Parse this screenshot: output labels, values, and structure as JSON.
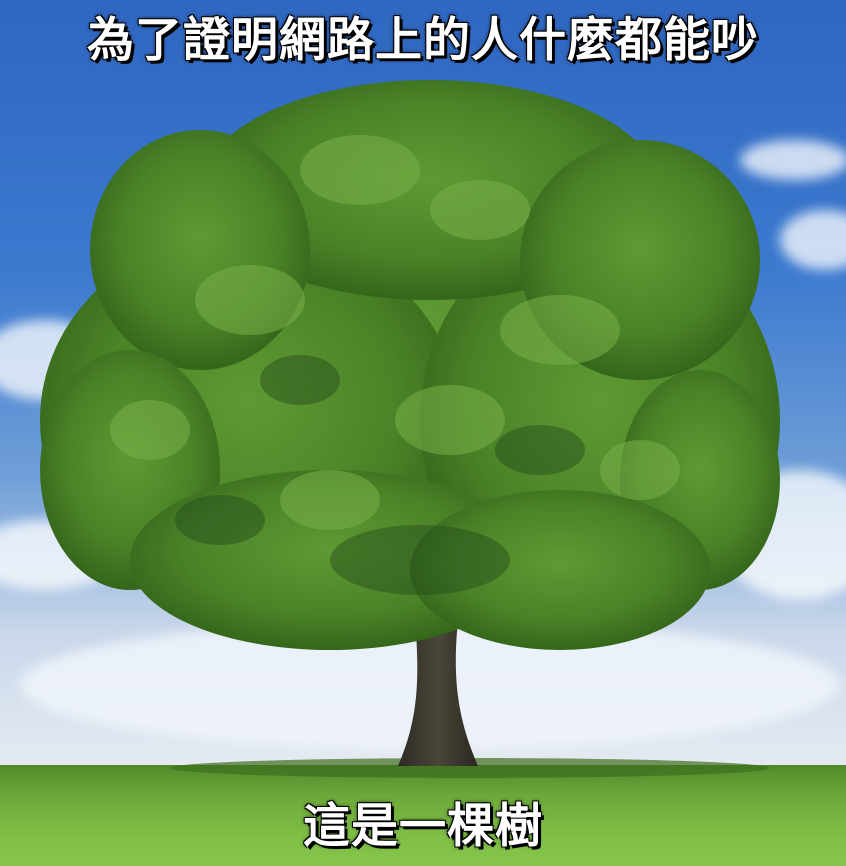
{
  "meme": {
    "top_caption": "為了證明網路上的人什麼都能吵",
    "bottom_caption": "這是一棵樹"
  },
  "colors": {
    "sky_top": "#2f66c0",
    "foliage": "#4f8a2a",
    "grass": "#7fbf45",
    "trunk": "#3e3a2e"
  }
}
